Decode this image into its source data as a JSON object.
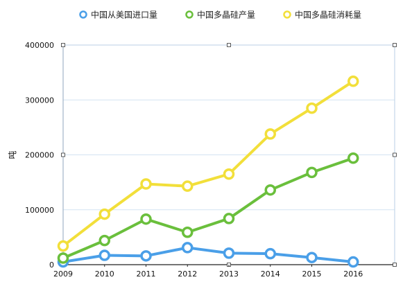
{
  "chart_data": {
    "type": "line",
    "x": [
      2009,
      2010,
      2011,
      2012,
      2013,
      2014,
      2015,
      2016
    ],
    "xlim": [
      2009,
      2017
    ],
    "ylim": [
      0,
      400000
    ],
    "yticks": [
      0,
      100000,
      200000,
      300000,
      400000
    ],
    "ylabel": "吨",
    "xlabel": "",
    "grid": "horizontal",
    "legend_position": "top",
    "series": [
      {
        "name": "中国从美国进口量",
        "color": "#4a9fe8",
        "values": [
          5000,
          17000,
          16000,
          31000,
          21000,
          20000,
          13000,
          5000
        ]
      },
      {
        "name": "中国多晶硅产量",
        "color": "#6abf3c",
        "values": [
          12000,
          44000,
          83000,
          59000,
          84000,
          136000,
          168000,
          194000
        ]
      },
      {
        "name": "中国多晶硅消耗量",
        "color": "#f2df3a",
        "values": [
          34000,
          92000,
          147000,
          143000,
          165000,
          238000,
          285000,
          334000
        ]
      }
    ]
  }
}
